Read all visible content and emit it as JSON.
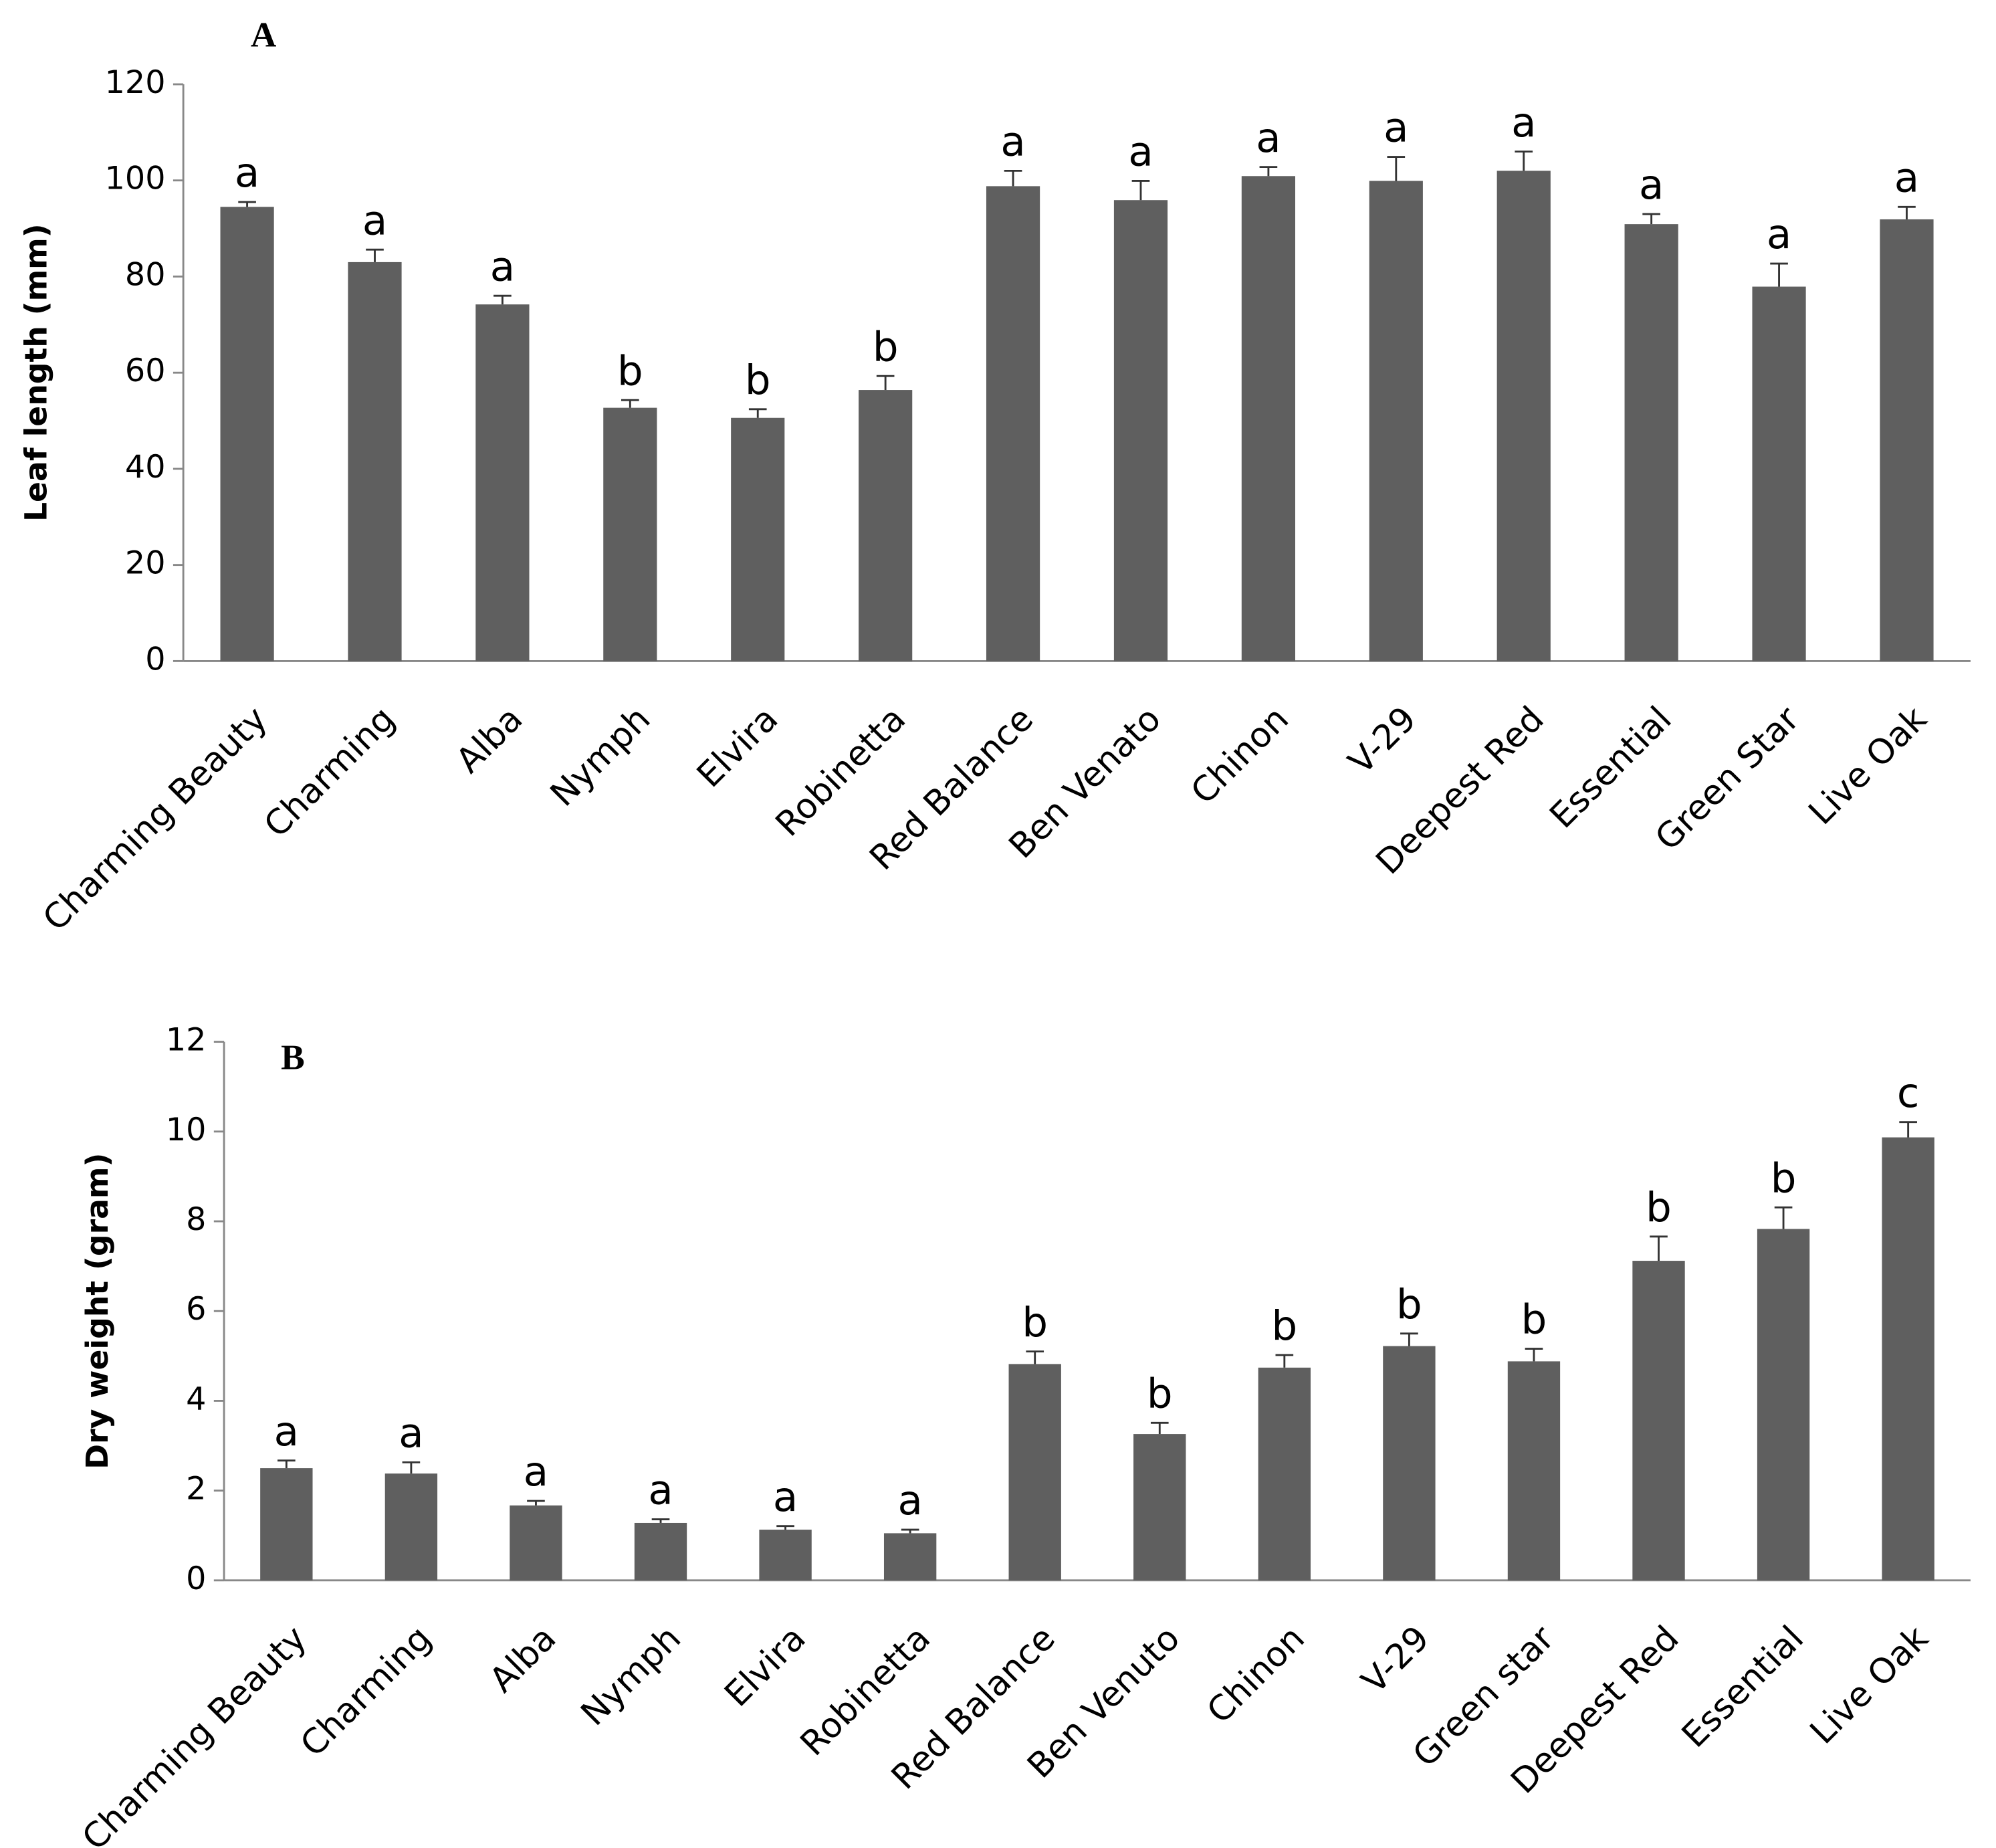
{
  "chart_data": [
    {
      "type": "bar",
      "title": "A",
      "ylabel": "Leaf length (mm)",
      "categories": [
        "Charming Beauty",
        "Charming",
        "Alba",
        "Nymph",
        "Elvira",
        "Robinetta",
        "Red Balance",
        "Ben Venato",
        "Chinon",
        "V-29",
        "Deepest Red",
        "Essential",
        "Green Star",
        "Live Oak"
      ],
      "values": [
        94.5,
        83,
        74.2,
        52.7,
        50.6,
        56.4,
        98.8,
        95.9,
        100.9,
        99.9,
        102,
        90.9,
        77.9,
        91.9
      ],
      "errors": [
        1,
        2.6,
        1.8,
        1.6,
        1.8,
        2.9,
        3.2,
        4,
        1.9,
        5,
        4,
        2.1,
        4.8,
        2.6
      ],
      "letters": [
        "a",
        "a",
        "a",
        "b",
        "b",
        "b",
        "a",
        "a",
        "a",
        "a",
        "a",
        "a",
        "a",
        "a"
      ],
      "color": "#5f5f5f",
      "ylim": [
        0,
        120
      ],
      "yticks": [
        0,
        20,
        40,
        60,
        80,
        100,
        120
      ]
    },
    {
      "type": "bar",
      "title": "B",
      "ylabel": "Dry weight (gram)",
      "categories": [
        "Charming Beauty",
        "Charming",
        "Alba",
        "Nymph",
        "Elvira",
        "Robinetta",
        "Red Balance",
        "Ben Venuto",
        "Chinon",
        "V-29",
        "Green star",
        "Deepest Red",
        "Essential",
        "Live Oak"
      ],
      "values": [
        2.5,
        2.38,
        1.67,
        1.28,
        1.13,
        1.05,
        4.82,
        3.26,
        4.74,
        5.22,
        4.88,
        7.12,
        7.83,
        9.87
      ],
      "errors": [
        0.17,
        0.25,
        0.1,
        0.08,
        0.08,
        0.08,
        0.28,
        0.25,
        0.28,
        0.28,
        0.28,
        0.54,
        0.48,
        0.34
      ],
      "letters": [
        "a",
        "a",
        "a",
        "a",
        "a",
        "a",
        "b",
        "b",
        "b",
        "b",
        "b",
        "b",
        "b",
        "c"
      ],
      "color": "#5f5f5f",
      "ylim": [
        0,
        12
      ],
      "yticks": [
        0,
        2,
        4,
        6,
        8,
        10,
        12
      ]
    }
  ]
}
